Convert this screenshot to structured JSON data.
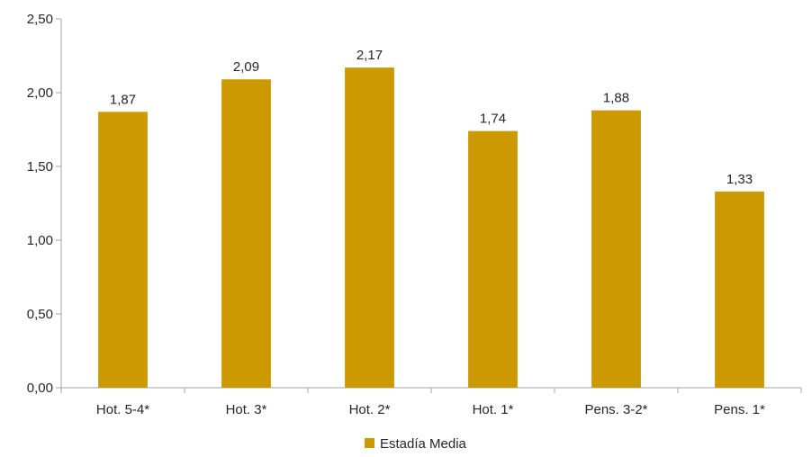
{
  "chart_data": {
    "type": "bar",
    "categories": [
      "Hot. 5-4*",
      "Hot. 3*",
      "Hot. 2*",
      "Hot. 1*",
      "Pens. 3-2*",
      "Pens. 1*"
    ],
    "series": [
      {
        "name": "Estadía Media",
        "values": [
          1.87,
          2.09,
          2.17,
          1.74,
          1.88,
          1.33
        ],
        "color": "#CC9900"
      }
    ],
    "data_labels": [
      "1,87",
      "2,09",
      "2,17",
      "1,74",
      "1,88",
      "1,33"
    ],
    "ylim": [
      0,
      2.5
    ],
    "yticks": [
      0,
      0.5,
      1.0,
      1.5,
      2.0,
      2.5
    ],
    "ytick_labels": [
      "0,00",
      "0,50",
      "1,00",
      "1,50",
      "2,00",
      "2,50"
    ],
    "grid": false,
    "legend_position": "bottom",
    "title": "",
    "xlabel": "",
    "ylabel": ""
  }
}
